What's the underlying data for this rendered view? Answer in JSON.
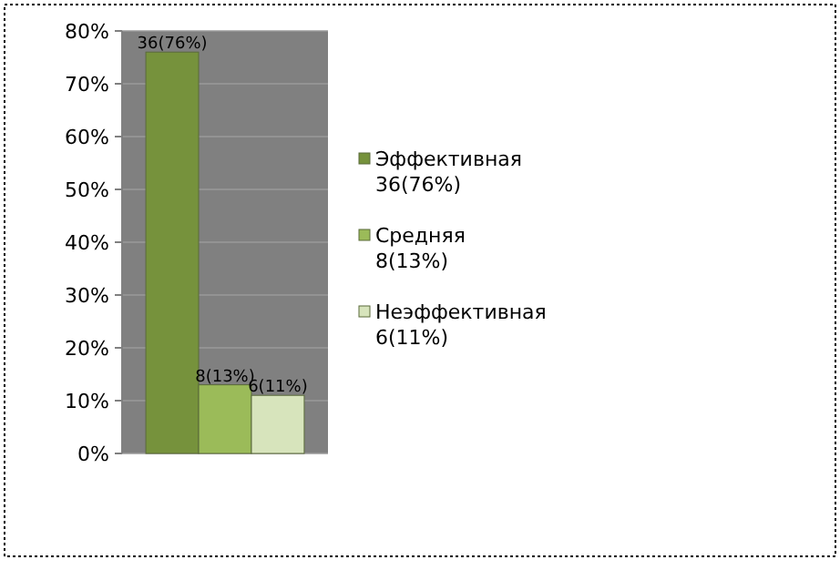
{
  "chart_data": {
    "type": "bar",
    "categories": [
      null
    ],
    "series": [
      {
        "name": "Эффективная 36(76%)",
        "color": "#76923c",
        "values": [
          76
        ],
        "value_labels": [
          "36(76%)"
        ]
      },
      {
        "name": "Средняя 8(13%)",
        "color": "#9bbb59",
        "values": [
          13
        ],
        "value_labels": [
          "8(13%)"
        ]
      },
      {
        "name": "Неэффективная 6(11%)",
        "color": "#d7e4bc",
        "values": [
          11
        ],
        "value_labels": [
          "6(11%)"
        ]
      }
    ],
    "ylim": [
      0,
      80
    ],
    "yticks": [
      {
        "value": 0,
        "label": "0%"
      },
      {
        "value": 10,
        "label": "10%"
      },
      {
        "value": 20,
        "label": "20%"
      },
      {
        "value": 30,
        "label": "30%"
      },
      {
        "value": 40,
        "label": "40%"
      },
      {
        "value": 50,
        "label": "50%"
      },
      {
        "value": 60,
        "label": "60%"
      },
      {
        "value": 70,
        "label": "70%"
      },
      {
        "value": 80,
        "label": "80%"
      }
    ],
    "grid": "y",
    "legend": "right"
  }
}
